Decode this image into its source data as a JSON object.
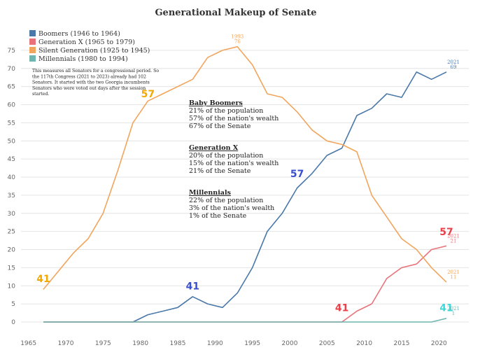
{
  "chart_data": {
    "type": "line",
    "title": "Generational Makeup of Senate",
    "xlabel": "",
    "ylabel": "",
    "xlim": [
      1964,
      2024
    ],
    "ylim": [
      0,
      80
    ],
    "x_ticks": [
      1965,
      1970,
      1975,
      1980,
      1985,
      1990,
      1995,
      2000,
      2005,
      2010,
      2015,
      2020
    ],
    "y_ticks": [
      0,
      5,
      10,
      15,
      20,
      25,
      30,
      35,
      40,
      45,
      50,
      55,
      60,
      65,
      70,
      75
    ],
    "grid": "horizontal",
    "legend": "top-left",
    "series": [
      {
        "name": "Boomers (1946 to 1964)",
        "color": "#4a78a8",
        "x": [
          1967,
          1969,
          1971,
          1973,
          1975,
          1977,
          1979,
          1981,
          1983,
          1985,
          1987,
          1989,
          1991,
          1993,
          1995,
          1997,
          1999,
          2001,
          2003,
          2005,
          2007,
          2009,
          2011,
          2013,
          2015,
          2017,
          2019,
          2021
        ],
        "values": [
          0,
          0,
          0,
          0,
          0,
          0,
          0,
          2,
          3,
          4,
          7,
          5,
          4,
          8,
          15,
          25,
          30,
          37,
          41,
          46,
          48,
          57,
          59,
          63,
          62,
          69,
          67,
          69
        ]
      },
      {
        "name": "Generation X (1965 to 1979)",
        "color": "#e8737a",
        "x": [
          1967,
          1969,
          1971,
          1973,
          1975,
          1977,
          1979,
          1981,
          1983,
          1985,
          1987,
          1989,
          1991,
          1993,
          1995,
          1997,
          1999,
          2001,
          2003,
          2005,
          2007,
          2009,
          2011,
          2013,
          2015,
          2017,
          2019,
          2021
        ],
        "values": [
          0,
          0,
          0,
          0,
          0,
          0,
          0,
          0,
          0,
          0,
          0,
          0,
          0,
          0,
          0,
          0,
          0,
          0,
          0,
          0,
          0,
          3,
          5,
          12,
          15,
          16,
          20,
          21
        ]
      },
      {
        "name": "Silent Generation (1925 to 1945)",
        "color": "#f2a55c",
        "x": [
          1967,
          1969,
          1971,
          1973,
          1975,
          1977,
          1979,
          1981,
          1983,
          1985,
          1987,
          1989,
          1991,
          1993,
          1995,
          1997,
          1999,
          2001,
          2003,
          2005,
          2007,
          2009,
          2011,
          2013,
          2015,
          2017,
          2019,
          2021
        ],
        "values": [
          9,
          14,
          19,
          23,
          30,
          42,
          55,
          61,
          63,
          65,
          67,
          73,
          75,
          76,
          71,
          63,
          62,
          58,
          53,
          50,
          49,
          47,
          35,
          29,
          23,
          20,
          15,
          11
        ]
      },
      {
        "name": "Millennials (1980 to 1994)",
        "color": "#6fb5b0",
        "x": [
          1967,
          1969,
          1971,
          1973,
          1975,
          1977,
          1979,
          1981,
          1983,
          1985,
          1987,
          1989,
          1991,
          1993,
          1995,
          1997,
          1999,
          2001,
          2003,
          2005,
          2007,
          2009,
          2011,
          2013,
          2015,
          2017,
          2019,
          2021
        ],
        "values": [
          0,
          0,
          0,
          0,
          0,
          0,
          0,
          0,
          0,
          0,
          0,
          0,
          0,
          0,
          0,
          0,
          0,
          0,
          0,
          0,
          0,
          0,
          0,
          0,
          0,
          0,
          0,
          1
        ]
      }
    ],
    "note": "This measures all Senators for a congressional period.  So the 117th Congress (2021 to 2023) already had 102 Senators. It started with the two Georgia incumbents Senators who were voted out days after the session started.",
    "stats": [
      {
        "heading": "Baby Boomers",
        "lines": [
          "21% of the population",
          "57% of the nation's wealth",
          "67% of the Senate"
        ]
      },
      {
        "heading": "Generation X",
        "lines": [
          "20% of the population",
          "15% of the nation's wealth",
          "21% of the Senate"
        ]
      },
      {
        "heading": "Millennials",
        "lines": [
          "22% of the population",
          "3% of the nation's wealth",
          "1% of the Senate"
        ]
      }
    ],
    "age_annotations": [
      {
        "text": "41",
        "x": 1967,
        "y": 11,
        "color": "#f2a800"
      },
      {
        "text": "57",
        "x": 1981,
        "y": 62,
        "color": "#f2a800"
      },
      {
        "text": "41",
        "x": 1987,
        "y": 9,
        "color": "#3a4fd0"
      },
      {
        "text": "57",
        "x": 2001,
        "y": 40,
        "color": "#3a4fd0"
      },
      {
        "text": "41",
        "x": 2007,
        "y": 3,
        "color": "#e8414a"
      },
      {
        "text": "57",
        "x": 2021,
        "y": 24,
        "color": "#e8414a"
      },
      {
        "text": "41",
        "x": 2021,
        "y": 3,
        "color": "#3fd8d8"
      }
    ],
    "point_labels": [
      {
        "year": "1993",
        "value": "76",
        "x": 1993,
        "y": 76,
        "color": "#f2a55c"
      },
      {
        "year": "2021",
        "value": "69",
        "x": 2021,
        "y": 69,
        "color": "#4a78a8"
      },
      {
        "year": "2021",
        "value": "21",
        "x": 2021,
        "y": 21,
        "color": "#e8737a"
      },
      {
        "year": "2021",
        "value": "11",
        "x": 2021,
        "y": 11,
        "color": "#f2a55c"
      },
      {
        "year": "2021",
        "value": "1",
        "x": 2021,
        "y": 1,
        "color": "#6fb5b0"
      }
    ]
  }
}
